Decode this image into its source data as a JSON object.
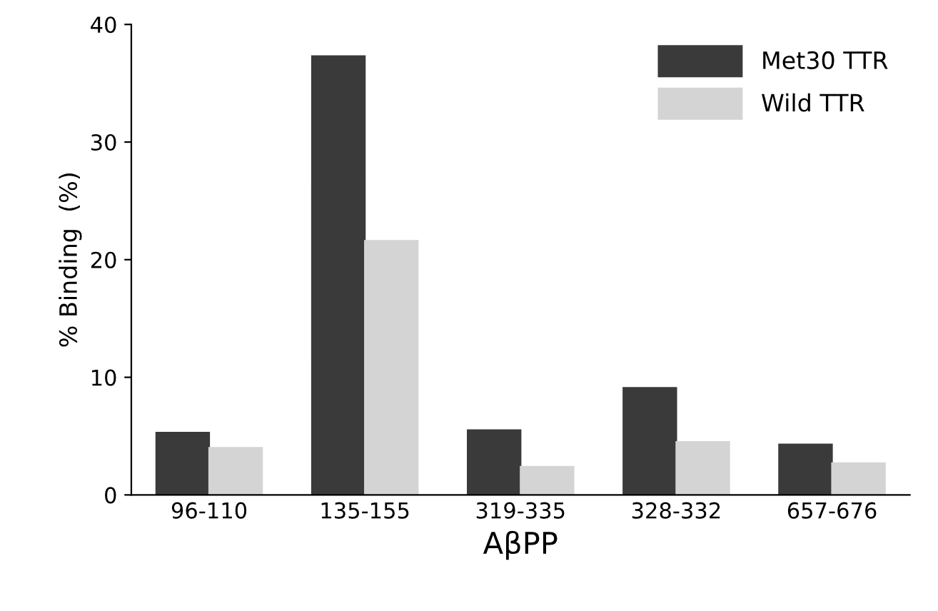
{
  "chart_data": {
    "type": "bar",
    "xlabel": "AβPP",
    "ylabel": "% Binding  (%)",
    "categories": [
      "96-110",
      "135-155",
      "319-335",
      "328-332",
      "657-676"
    ],
    "series": [
      {
        "name": "Met30 TTR",
        "color": "#3a3a3a",
        "values": [
          5.3,
          37.3,
          5.5,
          9.1,
          4.3
        ]
      },
      {
        "name": "Wild TTR",
        "color": "#d4d4d4",
        "values": [
          4.0,
          21.6,
          2.4,
          4.5,
          2.7
        ]
      }
    ],
    "ylim": [
      0,
      40
    ],
    "yticks": [
      0,
      10,
      20,
      30,
      40
    ],
    "legend": "top right"
  }
}
